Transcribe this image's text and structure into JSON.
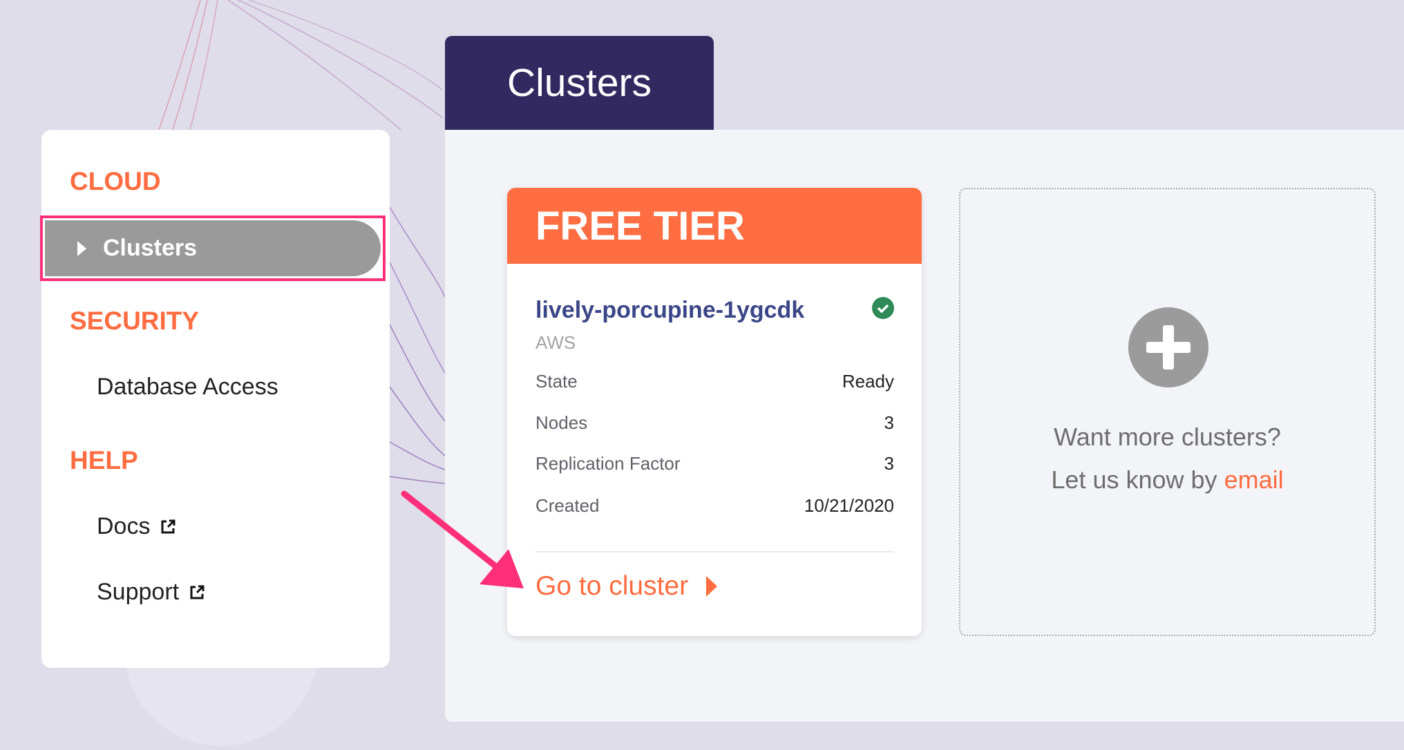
{
  "colors": {
    "accent": "#ff6c40",
    "tab": "#332961",
    "highlight": "#ff2e78",
    "status_ok": "#2e8b57"
  },
  "sidebar": {
    "sections": [
      {
        "title": "CLOUD",
        "items": [
          {
            "label": "Clusters",
            "active": true
          }
        ]
      },
      {
        "title": "SECURITY",
        "items": [
          {
            "label": "Database Access"
          }
        ]
      },
      {
        "title": "HELP",
        "items": [
          {
            "label": "Docs",
            "icon": "external-link-icon"
          },
          {
            "label": "Support",
            "icon": "external-link-icon"
          }
        ]
      }
    ]
  },
  "header": {
    "title": "Clusters"
  },
  "cluster_card": {
    "tier": "FREE TIER",
    "name": "lively-porcupine-1ygcdk",
    "status_icon": "check-circle-icon",
    "provider": "AWS",
    "rows": [
      {
        "label": "State",
        "value": "Ready"
      },
      {
        "label": "Nodes",
        "value": "3"
      },
      {
        "label": "Replication Factor",
        "value": "3"
      },
      {
        "label": "Created",
        "value": "10/21/2020"
      }
    ],
    "action": "Go to cluster"
  },
  "more_clusters": {
    "line1": "Want more clusters?",
    "line2": "Let us know by",
    "link": "email"
  }
}
